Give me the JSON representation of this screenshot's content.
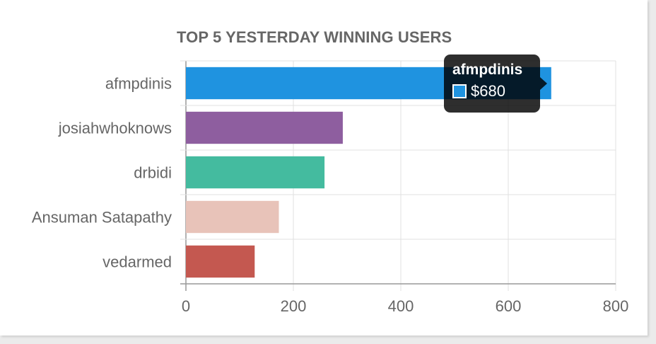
{
  "chart_data": {
    "type": "bar",
    "orientation": "horizontal",
    "title": "TOP 5 YESTERDAY WINNING USERS",
    "categories": [
      "afmpdinis",
      "josiahwhoknows",
      "drbidi",
      "Ansuman Satapathy",
      "vedarmed"
    ],
    "values": [
      680,
      292,
      258,
      173,
      128
    ],
    "colors": [
      "#1f93e0",
      "#8e5e9f",
      "#44bb9f",
      "#e8c3b9",
      "#c45850"
    ],
    "xlim": [
      0,
      800
    ],
    "xticks": [
      "0",
      "200",
      "400",
      "600",
      "800"
    ],
    "grid": true,
    "legend": "none"
  },
  "tooltip": {
    "title": "afmpdinis",
    "value_label": "$680",
    "color": "#1f93e0"
  }
}
